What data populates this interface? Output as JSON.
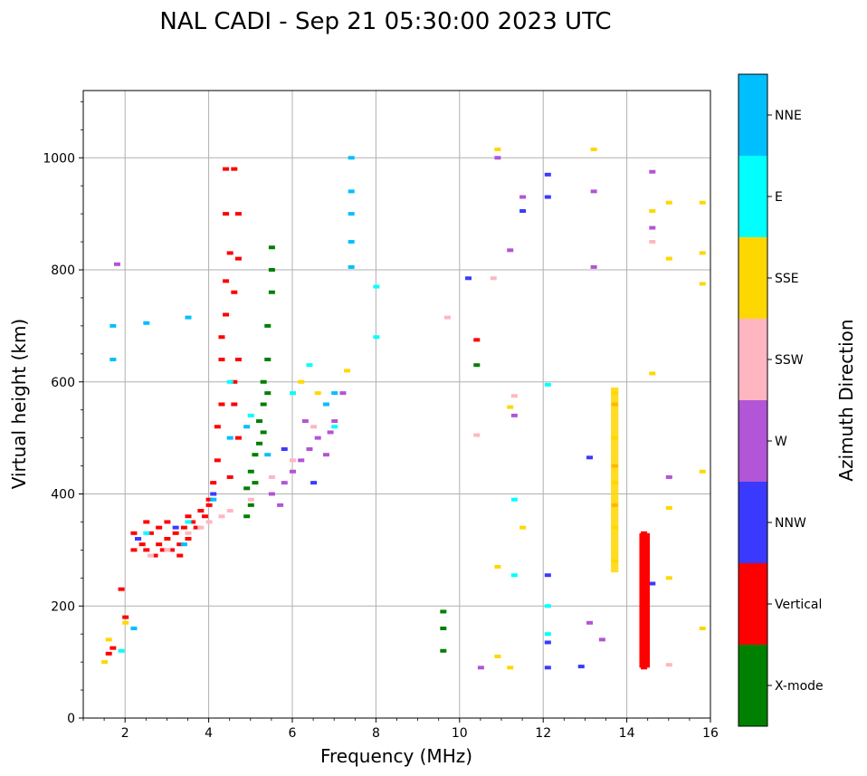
{
  "chart_data": {
    "type": "scatter",
    "title": "NAL CADI - Sep 21 05:30:00 2023 UTC",
    "xlabel": "Frequency (MHz)",
    "ylabel": "Virtual height (km)",
    "xlim": [
      1,
      16
    ],
    "ylim": [
      0,
      1120
    ],
    "xticks": [
      2,
      4,
      6,
      8,
      10,
      12,
      14,
      16
    ],
    "yticks": [
      0,
      200,
      400,
      600,
      800,
      1000
    ],
    "grid": true,
    "colorbar": {
      "label": "Azimuth Direction",
      "categories": [
        {
          "name": "X-mode",
          "color": "#008000"
        },
        {
          "name": "Vertical",
          "color": "#ff0000"
        },
        {
          "name": "NNW",
          "color": "#3a3aff"
        },
        {
          "name": "W",
          "color": "#b255d6"
        },
        {
          "name": "SSW",
          "color": "#ffb6c1"
        },
        {
          "name": "SSE",
          "color": "#ffd700"
        },
        {
          "name": "E",
          "color": "#00ffff"
        },
        {
          "name": "NNE",
          "color": "#00bfff"
        }
      ]
    },
    "series": [
      {
        "name": "Vertical",
        "color": "#ff0000",
        "points": [
          [
            1.6,
            115
          ],
          [
            1.7,
            125
          ],
          [
            1.9,
            230
          ],
          [
            2.0,
            180
          ],
          [
            2.2,
            330
          ],
          [
            2.3,
            320
          ],
          [
            2.4,
            310
          ],
          [
            2.5,
            300
          ],
          [
            2.6,
            330
          ],
          [
            2.7,
            290
          ],
          [
            2.8,
            310
          ],
          [
            2.9,
            300
          ],
          [
            3.0,
            320
          ],
          [
            3.1,
            300
          ],
          [
            3.2,
            330
          ],
          [
            3.3,
            310
          ],
          [
            3.4,
            340
          ],
          [
            3.5,
            320
          ],
          [
            3.6,
            350
          ],
          [
            3.7,
            340
          ],
          [
            3.8,
            370
          ],
          [
            3.9,
            360
          ],
          [
            4.0,
            390
          ],
          [
            4.1,
            420
          ],
          [
            4.2,
            460
          ],
          [
            4.2,
            520
          ],
          [
            4.3,
            560
          ],
          [
            4.3,
            640
          ],
          [
            4.4,
            720
          ],
          [
            4.4,
            780
          ],
          [
            4.5,
            830
          ],
          [
            4.4,
            900
          ],
          [
            4.4,
            980
          ],
          [
            4.6,
            980
          ],
          [
            4.7,
            900
          ],
          [
            4.6,
            760
          ],
          [
            4.7,
            640
          ],
          [
            4.6,
            560
          ],
          [
            4.7,
            500
          ],
          [
            4.5,
            430
          ],
          [
            2.5,
            350
          ],
          [
            3.0,
            350
          ],
          [
            3.5,
            360
          ],
          [
            4.0,
            380
          ],
          [
            2.2,
            300
          ],
          [
            2.8,
            340
          ],
          [
            3.3,
            290
          ],
          [
            4.3,
            680
          ],
          [
            4.7,
            820
          ],
          [
            4.6,
            600
          ],
          [
            14.4,
            330
          ],
          [
            14.4,
            250
          ],
          [
            14.4,
            170
          ],
          [
            14.4,
            90
          ],
          [
            13.7,
            560
          ],
          [
            13.7,
            450
          ],
          [
            13.7,
            380
          ],
          [
            10.4,
            675
          ]
        ]
      },
      {
        "name": "X-mode",
        "color": "#008000",
        "points": [
          [
            4.9,
            410
          ],
          [
            5.0,
            440
          ],
          [
            5.1,
            470
          ],
          [
            5.2,
            490
          ],
          [
            5.2,
            530
          ],
          [
            5.3,
            560
          ],
          [
            5.3,
            600
          ],
          [
            5.4,
            640
          ],
          [
            5.4,
            700
          ],
          [
            5.5,
            760
          ],
          [
            5.5,
            840
          ],
          [
            5.3,
            510
          ],
          [
            5.1,
            420
          ],
          [
            5.0,
            380
          ],
          [
            4.9,
            360
          ],
          [
            5.4,
            580
          ],
          [
            5.5,
            800
          ],
          [
            9.6,
            190
          ],
          [
            9.6,
            120
          ],
          [
            9.6,
            160
          ],
          [
            10.4,
            630
          ]
        ]
      },
      {
        "name": "NNW",
        "color": "#3a3aff",
        "points": [
          [
            2.3,
            320
          ],
          [
            3.2,
            340
          ],
          [
            4.1,
            400
          ],
          [
            5.8,
            480
          ],
          [
            6.5,
            420
          ],
          [
            10.2,
            785
          ],
          [
            12.1,
            970
          ],
          [
            12.1,
            930
          ],
          [
            12.1,
            255
          ],
          [
            12.1,
            135
          ],
          [
            12.1,
            90
          ],
          [
            12.9,
            92
          ],
          [
            11.5,
            905
          ],
          [
            13.1,
            465
          ],
          [
            14.6,
            240
          ]
        ]
      },
      {
        "name": "W",
        "color": "#b255d6",
        "points": [
          [
            1.8,
            810
          ],
          [
            5.5,
            400
          ],
          [
            5.8,
            420
          ],
          [
            6.0,
            440
          ],
          [
            6.2,
            460
          ],
          [
            6.4,
            480
          ],
          [
            6.6,
            500
          ],
          [
            6.8,
            470
          ],
          [
            7.0,
            530
          ],
          [
            7.2,
            580
          ],
          [
            5.7,
            380
          ],
          [
            6.3,
            530
          ],
          [
            6.9,
            510
          ],
          [
            10.9,
            1000
          ],
          [
            11.2,
            835
          ],
          [
            11.5,
            930
          ],
          [
            13.2,
            940
          ],
          [
            13.2,
            805
          ],
          [
            13.1,
            170
          ],
          [
            13.4,
            140
          ],
          [
            14.6,
            975
          ],
          [
            14.6,
            875
          ],
          [
            15.0,
            430
          ],
          [
            10.5,
            90
          ],
          [
            11.3,
            540
          ]
        ]
      },
      {
        "name": "SSW",
        "color": "#ffb6c1",
        "points": [
          [
            2.6,
            290
          ],
          [
            3.0,
            300
          ],
          [
            3.5,
            330
          ],
          [
            4.0,
            350
          ],
          [
            4.5,
            370
          ],
          [
            5.0,
            390
          ],
          [
            5.5,
            430
          ],
          [
            6.0,
            460
          ],
          [
            6.5,
            520
          ],
          [
            3.8,
            340
          ],
          [
            4.3,
            360
          ],
          [
            9.7,
            715
          ],
          [
            10.4,
            505
          ],
          [
            10.8,
            785
          ],
          [
            11.3,
            575
          ],
          [
            14.6,
            850
          ],
          [
            15.0,
            95
          ]
        ]
      },
      {
        "name": "SSE",
        "color": "#ffd700",
        "points": [
          [
            1.5,
            100
          ],
          [
            1.6,
            140
          ],
          [
            2.0,
            170
          ],
          [
            6.2,
            600
          ],
          [
            6.6,
            580
          ],
          [
            7.3,
            620
          ],
          [
            10.9,
            1015
          ],
          [
            10.9,
            270
          ],
          [
            10.9,
            110
          ],
          [
            11.2,
            555
          ],
          [
            11.2,
            90
          ],
          [
            11.5,
            340
          ],
          [
            13.7,
            580
          ],
          [
            13.7,
            500
          ],
          [
            13.7,
            420
          ],
          [
            13.7,
            340
          ],
          [
            13.7,
            280
          ],
          [
            14.6,
            615
          ],
          [
            14.6,
            905
          ],
          [
            15.0,
            920
          ],
          [
            15.0,
            820
          ],
          [
            15.0,
            375
          ],
          [
            15.0,
            250
          ],
          [
            15.8,
            920
          ],
          [
            15.8,
            830
          ],
          [
            15.8,
            775
          ],
          [
            15.8,
            440
          ],
          [
            15.8,
            160
          ],
          [
            13.2,
            1015
          ]
        ]
      },
      {
        "name": "E",
        "color": "#00ffff",
        "points": [
          [
            2.5,
            330
          ],
          [
            3.5,
            350
          ],
          [
            4.5,
            600
          ],
          [
            5.0,
            540
          ],
          [
            6.0,
            580
          ],
          [
            6.4,
            630
          ],
          [
            7.0,
            520
          ],
          [
            8.0,
            770
          ],
          [
            8.0,
            680
          ],
          [
            11.3,
            390
          ],
          [
            11.3,
            255
          ],
          [
            12.1,
            595
          ],
          [
            12.1,
            200
          ],
          [
            12.1,
            150
          ],
          [
            1.9,
            120
          ]
        ]
      },
      {
        "name": "NNE",
        "color": "#00bfff",
        "points": [
          [
            1.7,
            700
          ],
          [
            1.7,
            640
          ],
          [
            2.2,
            160
          ],
          [
            2.5,
            705
          ],
          [
            3.5,
            715
          ],
          [
            4.1,
            390
          ],
          [
            4.5,
            500
          ],
          [
            4.9,
            520
          ],
          [
            5.4,
            470
          ],
          [
            7.4,
            1000
          ],
          [
            7.4,
            940
          ],
          [
            7.4,
            900
          ],
          [
            7.4,
            850
          ],
          [
            7.4,
            805
          ],
          [
            7.0,
            580
          ],
          [
            6.8,
            560
          ],
          [
            3.4,
            310
          ]
        ]
      }
    ]
  }
}
